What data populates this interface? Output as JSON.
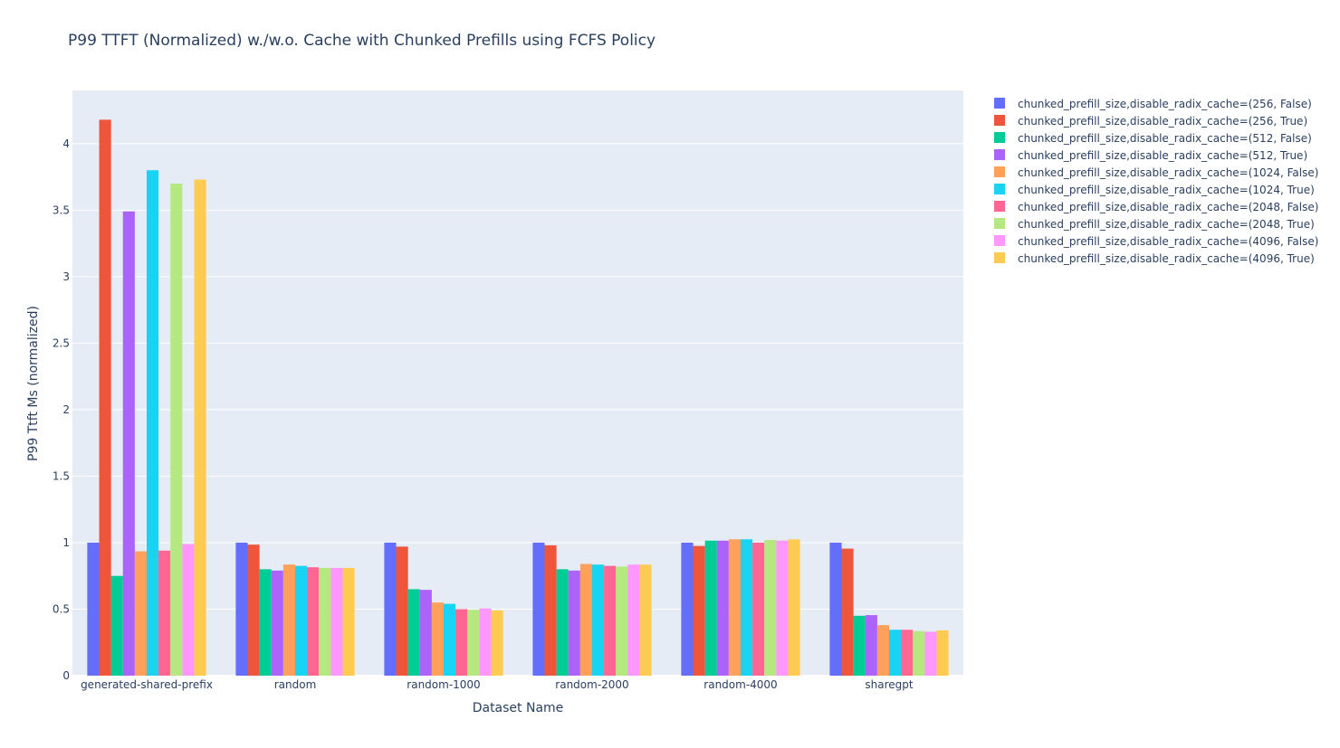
{
  "chart_data": {
    "type": "bar",
    "title": "P99 TTFT (Normalized) w./w.o. Cache with Chunked Prefills using FCFS Policy",
    "xlabel": "Dataset Name",
    "ylabel": "P99 Ttft Ms (normalized)",
    "ylim": [
      0,
      4.4
    ],
    "yticks": [
      0,
      0.5,
      1,
      1.5,
      2,
      2.5,
      3,
      3.5,
      4
    ],
    "ytick_labels": [
      "0",
      "0.5",
      "1",
      "1.5",
      "2",
      "2.5",
      "3",
      "3.5",
      "4"
    ],
    "grid": true,
    "legend_position": "right",
    "categories": [
      "generated-shared-prefix",
      "random",
      "random-1000",
      "random-2000",
      "random-4000",
      "sharegpt"
    ],
    "series": [
      {
        "name": "chunked_prefill_size,disable_radix_cache=(256, False)",
        "color": "#636efa",
        "values": [
          1.0,
          1.0,
          1.0,
          1.0,
          1.0,
          1.0
        ]
      },
      {
        "name": "chunked_prefill_size,disable_radix_cache=(256, True)",
        "color": "#EF553B",
        "values": [
          4.18,
          0.985,
          0.97,
          0.98,
          0.975,
          0.955
        ]
      },
      {
        "name": "chunked_prefill_size,disable_radix_cache=(512, False)",
        "color": "#00cc96",
        "values": [
          0.75,
          0.8,
          0.65,
          0.8,
          1.015,
          0.45
        ]
      },
      {
        "name": "chunked_prefill_size,disable_radix_cache=(512, True)",
        "color": "#ab63fa",
        "values": [
          3.49,
          0.79,
          0.645,
          0.79,
          1.015,
          0.455
        ]
      },
      {
        "name": "chunked_prefill_size,disable_radix_cache=(1024, False)",
        "color": "#FFA15A",
        "values": [
          0.935,
          0.835,
          0.55,
          0.84,
          1.025,
          0.38
        ]
      },
      {
        "name": "chunked_prefill_size,disable_radix_cache=(1024, True)",
        "color": "#19d3f3",
        "values": [
          3.8,
          0.825,
          0.54,
          0.835,
          1.025,
          0.345
        ]
      },
      {
        "name": "chunked_prefill_size,disable_radix_cache=(2048, False)",
        "color": "#FF6692",
        "values": [
          0.94,
          0.815,
          0.5,
          0.825,
          1.0,
          0.345
        ]
      },
      {
        "name": "chunked_prefill_size,disable_radix_cache=(2048, True)",
        "color": "#B6E880",
        "values": [
          3.7,
          0.81,
          0.495,
          0.82,
          1.02,
          0.335
        ]
      },
      {
        "name": "chunked_prefill_size,disable_radix_cache=(4096, False)",
        "color": "#FF97FF",
        "values": [
          0.99,
          0.81,
          0.505,
          0.835,
          1.015,
          0.33
        ]
      },
      {
        "name": "chunked_prefill_size,disable_radix_cache=(4096, True)",
        "color": "#FECB52",
        "values": [
          3.73,
          0.81,
          0.49,
          0.835,
          1.025,
          0.34
        ]
      }
    ]
  }
}
